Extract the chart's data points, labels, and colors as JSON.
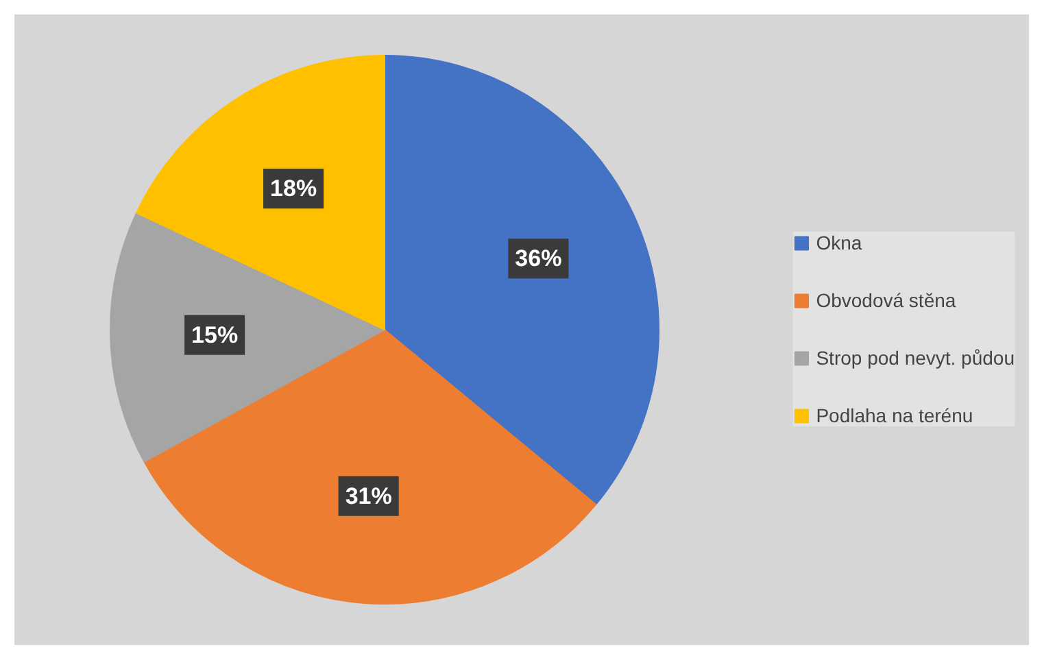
{
  "chart_data": {
    "type": "pie",
    "categories": [
      "Okna",
      "Obvodová stěna",
      "Strop pod nevyt. půdou",
      "Podlaha na terénu"
    ],
    "values": [
      36,
      31,
      15,
      18
    ],
    "colors": [
      "#4472c4",
      "#ed7d31",
      "#a5a5a5",
      "#ffc000"
    ],
    "value_labels": [
      "36%",
      "31%",
      "15%",
      "18%"
    ],
    "legend": "right"
  }
}
